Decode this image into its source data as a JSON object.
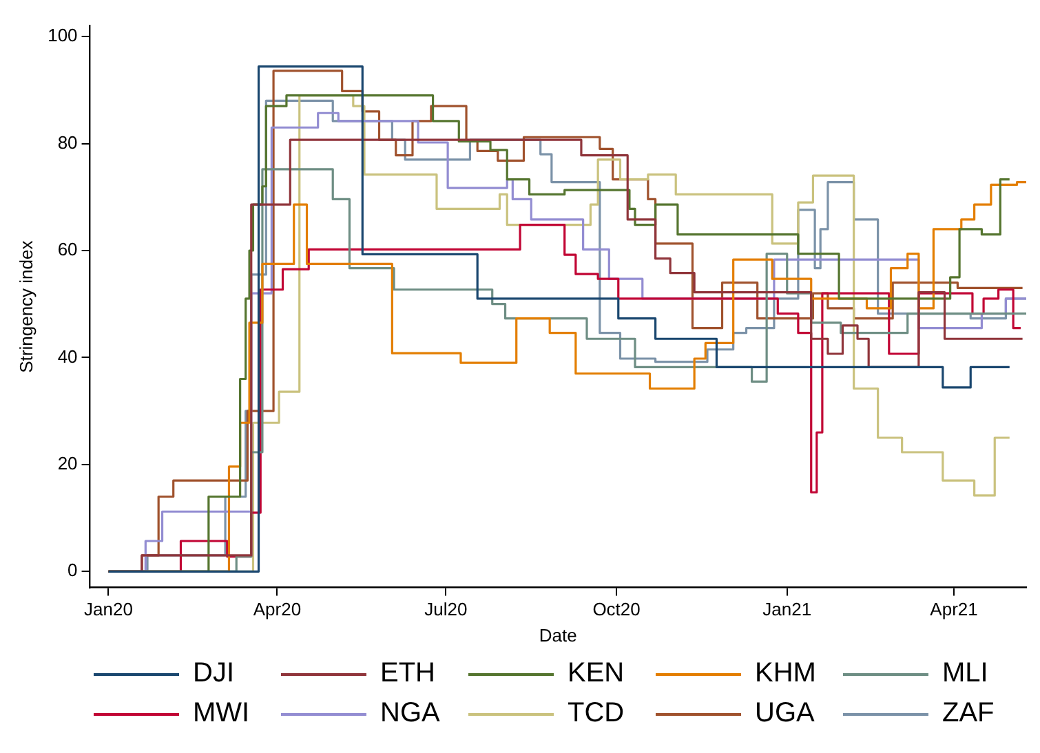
{
  "chart_data": {
    "type": "step",
    "xlabel": "Date",
    "ylabel": "Stringency index",
    "xlim": [
      "2019-12-22",
      "2021-05-10"
    ],
    "ylim": [
      -3,
      102
    ],
    "yticks": [
      0,
      20,
      40,
      60,
      80,
      100
    ],
    "xticks": [
      {
        "value": "2020-01-01",
        "label": "Jan20"
      },
      {
        "value": "2020-04-01",
        "label": "Apr20"
      },
      {
        "value": "2020-07-01",
        "label": "Jul20"
      },
      {
        "value": "2020-10-01",
        "label": "Oct20"
      },
      {
        "value": "2021-01-01",
        "label": "Jan21"
      },
      {
        "value": "2021-04-01",
        "label": "Apr21"
      }
    ],
    "grid": false,
    "legend": "bottom",
    "marker": "none",
    "line_style": "solid",
    "series": [
      {
        "name": "DJI",
        "color": "#1a476f",
        "x": [
          "2020-01-01",
          "2020-03-22",
          "2020-05-17",
          "2020-07-18",
          "2020-10-02",
          "2020-10-22",
          "2020-11-24",
          "2021-03-26",
          "2021-04-10",
          "2021-05-01"
        ],
        "values": [
          0,
          94.4,
          59.3,
          51,
          47.3,
          43.5,
          38.2,
          34.4,
          38.2,
          38.2
        ]
      },
      {
        "name": "ETH",
        "color": "#90353b",
        "x": [
          "2020-01-01",
          "2020-01-19",
          "2020-03-18",
          "2020-04-08",
          "2020-09-12",
          "2020-10-07",
          "2020-10-22",
          "2020-10-30",
          "2020-11-12",
          "2021-01-14",
          "2021-01-23",
          "2021-01-31",
          "2021-02-08",
          "2021-02-14",
          "2021-03-13",
          "2021-03-27",
          "2021-05-08"
        ],
        "values": [
          0,
          3,
          68.6,
          80.7,
          77.8,
          65.8,
          58.5,
          55.8,
          52.2,
          43.5,
          40.7,
          46,
          43.5,
          38.2,
          52.2,
          43.5,
          43.5
        ]
      },
      {
        "name": "KEN",
        "color": "#55752f",
        "x": [
          "2020-01-01",
          "2020-02-24",
          "2020-03-12",
          "2020-03-15",
          "2020-03-17",
          "2020-03-19",
          "2020-03-24",
          "2020-03-26",
          "2020-04-06",
          "2020-06-24",
          "2020-07-08",
          "2020-07-25",
          "2020-08-03",
          "2020-08-15",
          "2020-09-03",
          "2020-10-08",
          "2020-10-11",
          "2020-10-22",
          "2020-11-03",
          "2021-01-07",
          "2021-01-29",
          "2021-03-30",
          "2021-04-04",
          "2021-04-16",
          "2021-04-26",
          "2021-05-01"
        ],
        "values": [
          0,
          14,
          36,
          51,
          60,
          68.6,
          72,
          87,
          89,
          84.2,
          80.4,
          78.8,
          73.3,
          70.5,
          71.3,
          67.8,
          64.8,
          68.6,
          63,
          59.4,
          51,
          55,
          64,
          63,
          73.3,
          73.3
        ]
      },
      {
        "name": "KHM",
        "color": "#e37e00",
        "x": [
          "2020-01-01",
          "2020-03-06",
          "2020-03-12",
          "2020-03-17",
          "2020-03-24",
          "2020-04-10",
          "2020-04-17",
          "2020-06-02",
          "2020-07-09",
          "2020-08-08",
          "2020-08-26",
          "2020-09-09",
          "2020-10-19",
          "2020-11-12",
          "2020-11-18",
          "2020-12-03",
          "2020-12-24",
          "2021-01-14",
          "2021-02-13",
          "2021-02-26",
          "2021-03-07",
          "2021-03-13",
          "2021-03-21",
          "2021-04-05",
          "2021-04-12",
          "2021-04-21",
          "2021-05-05",
          "2021-05-10"
        ],
        "values": [
          0,
          19.6,
          27.8,
          46.5,
          57.5,
          68.6,
          57.5,
          40.8,
          39,
          47.3,
          44.6,
          37,
          34.2,
          39.8,
          42.7,
          58.3,
          54.7,
          51,
          49.2,
          56.7,
          59.4,
          49.2,
          64,
          65.8,
          68.6,
          72.3,
          72.8,
          72.8
        ]
      },
      {
        "name": "MLI",
        "color": "#6e8e84",
        "x": [
          "2020-01-01",
          "2020-03-10",
          "2020-03-18",
          "2020-03-24",
          "2020-05-01",
          "2020-05-10",
          "2020-06-03",
          "2020-07-26",
          "2020-08-02",
          "2020-09-15",
          "2020-10-11",
          "2020-12-13",
          "2020-12-21",
          "2021-01-01",
          "2021-01-14",
          "2021-01-30",
          "2021-03-07",
          "2021-05-10"
        ],
        "values": [
          0,
          2.8,
          22.3,
          75.2,
          69.6,
          56.7,
          52.7,
          50,
          47.3,
          43.5,
          38.2,
          35.5,
          59.4,
          52,
          46.5,
          44.6,
          48.2,
          48.2
        ]
      },
      {
        "name": "MWI",
        "color": "#c10534",
        "x": [
          "2020-01-01",
          "2020-02-09",
          "2020-03-05",
          "2020-03-18",
          "2020-03-23",
          "2020-04-04",
          "2020-04-18",
          "2020-08-10",
          "2020-09-03",
          "2020-09-09",
          "2020-09-21",
          "2020-10-02",
          "2020-12-27",
          "2021-01-07",
          "2021-01-14",
          "2021-01-17",
          "2021-01-20",
          "2021-02-25",
          "2021-03-13",
          "2021-04-11",
          "2021-04-17",
          "2021-04-25",
          "2021-05-03",
          "2021-05-07"
        ],
        "values": [
          0,
          5.7,
          2.8,
          11,
          52.7,
          56.5,
          60.2,
          64.8,
          59.2,
          55.6,
          54.7,
          51,
          48.2,
          44.6,
          14.8,
          26,
          52,
          40.7,
          52,
          48.2,
          51,
          52.7,
          45.5,
          45.5
        ]
      },
      {
        "name": "NGA",
        "color": "#938dd2",
        "x": [
          "2020-01-01",
          "2020-01-21",
          "2020-01-30",
          "2020-03-18",
          "2020-03-29",
          "2020-04-23",
          "2020-05-04",
          "2020-06-16",
          "2020-07-02",
          "2020-08-03",
          "2020-08-06",
          "2020-08-16",
          "2020-09-13",
          "2020-09-27",
          "2020-10-15",
          "2020-12-25",
          "2021-03-13",
          "2021-04-16",
          "2021-04-29",
          "2021-05-10"
        ],
        "values": [
          0,
          5.7,
          11.2,
          52,
          83,
          85.7,
          84.2,
          80.2,
          71.7,
          73.3,
          69.6,
          65.8,
          60.2,
          54.7,
          51,
          58.3,
          45.5,
          48.2,
          51,
          51
        ]
      },
      {
        "name": "TCD",
        "color": "#cac27e",
        "x": [
          "2020-01-01",
          "2020-03-19",
          "2020-04-02",
          "2020-04-13",
          "2020-05-12",
          "2020-05-18",
          "2020-06-26",
          "2020-07-30",
          "2020-08-03",
          "2020-09-17",
          "2020-09-21",
          "2020-10-03",
          "2020-10-18",
          "2020-11-02",
          "2020-12-24",
          "2021-01-07",
          "2021-01-15",
          "2021-02-06",
          "2021-02-19",
          "2021-03-04",
          "2021-03-26",
          "2021-04-12",
          "2021-04-23",
          "2021-05-01"
        ],
        "values": [
          0,
          27.8,
          33.6,
          89,
          87,
          74.2,
          67.8,
          70.5,
          64.8,
          68.6,
          77,
          73.3,
          74.2,
          70.5,
          61.3,
          69,
          74,
          34.2,
          25,
          22.3,
          17,
          14.2,
          25,
          25
        ]
      },
      {
        "name": "UGA",
        "color": "#a0522d",
        "x": [
          "2020-01-01",
          "2020-01-19",
          "2020-01-28",
          "2020-02-05",
          "2020-03-16",
          "2020-03-30",
          "2020-05-06",
          "2020-05-17",
          "2020-05-26",
          "2020-06-04",
          "2020-06-13",
          "2020-06-23",
          "2020-07-12",
          "2020-07-18",
          "2020-07-29",
          "2020-08-12",
          "2020-09-22",
          "2020-09-29",
          "2020-10-18",
          "2020-10-22",
          "2020-11-11",
          "2020-11-27",
          "2020-12-16",
          "2021-01-15",
          "2021-01-23",
          "2021-02-06",
          "2021-02-27",
          "2021-04-03",
          "2021-05-08"
        ],
        "values": [
          0,
          3,
          14,
          17,
          30,
          93.6,
          89.8,
          86,
          80.7,
          77.8,
          84.2,
          87,
          80.4,
          78.6,
          76.8,
          81.2,
          79,
          73.3,
          69.6,
          61.3,
          45.5,
          54,
          47.3,
          52,
          49.2,
          47.3,
          54,
          53,
          53
        ]
      },
      {
        "name": "ZAF",
        "color": "#7b92a8",
        "x": [
          "2020-01-01",
          "2020-01-22",
          "2020-03-04",
          "2020-03-15",
          "2020-03-18",
          "2020-03-26",
          "2020-05-01",
          "2020-06-02",
          "2020-06-09",
          "2020-07-14",
          "2020-08-21",
          "2020-08-27",
          "2020-09-22",
          "2020-10-03",
          "2020-10-22",
          "2020-11-19",
          "2020-12-03",
          "2020-12-10",
          "2020-12-25",
          "2021-01-07",
          "2021-01-16",
          "2021-01-19",
          "2021-01-23",
          "2021-02-06",
          "2021-02-19",
          "2021-04-10",
          "2021-04-29",
          "2021-05-10"
        ],
        "values": [
          0,
          3,
          14,
          30,
          55.5,
          88,
          84.2,
          80.7,
          77,
          80.7,
          78,
          72.8,
          44.6,
          39.8,
          39.2,
          41.5,
          44.6,
          45.5,
          51,
          67.6,
          56.7,
          64,
          72.8,
          65.8,
          48.2,
          47.3,
          51,
          51
        ]
      }
    ]
  }
}
